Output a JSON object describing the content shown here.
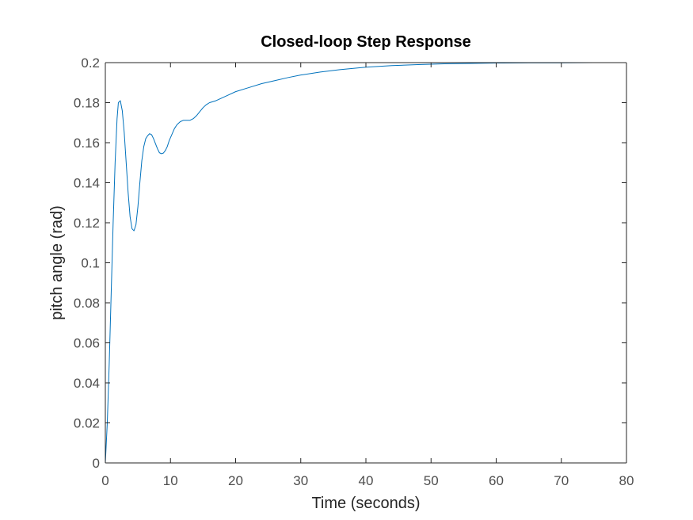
{
  "chart_data": {
    "type": "line",
    "title": "Closed-loop Step Response",
    "xlabel": "Time (seconds)",
    "ylabel": "pitch angle (rad)",
    "xlim": [
      0,
      80
    ],
    "ylim": [
      0,
      0.2
    ],
    "xticks": [
      0,
      10,
      20,
      30,
      40,
      50,
      60,
      70,
      80
    ],
    "yticks": [
      0,
      0.02,
      0.04,
      0.06,
      0.08,
      0.1,
      0.12,
      0.14,
      0.16,
      0.18,
      0.2
    ],
    "xtick_labels": [
      "0",
      "10",
      "20",
      "30",
      "40",
      "50",
      "60",
      "70",
      "80"
    ],
    "ytick_labels": [
      "0",
      "0.02",
      "0.04",
      "0.06",
      "0.08",
      "0.1",
      "0.12",
      "0.14",
      "0.16",
      "0.18",
      "0.2"
    ],
    "grid": false,
    "reference_line": {
      "y": 0.2,
      "style": "dotted"
    },
    "series": [
      {
        "color": "#0072BD",
        "x": [
          0,
          0.3,
          0.6,
          0.9,
          1.2,
          1.5,
          1.8,
          2.0,
          2.3,
          2.6,
          2.9,
          3.2,
          3.5,
          3.8,
          4.1,
          4.4,
          4.7,
          5.0,
          5.3,
          5.6,
          5.9,
          6.2,
          6.5,
          6.8,
          7.1,
          7.4,
          7.7,
          8.0,
          8.3,
          8.6,
          8.9,
          9.2,
          9.5,
          9.8,
          10.2,
          10.6,
          11.0,
          11.5,
          12.0,
          12.5,
          13.0,
          13.5,
          14.0,
          14.5,
          15.0,
          15.5,
          16.0,
          17.0,
          18.0,
          19.0,
          20.0,
          22.0,
          24.0,
          26.0,
          28.0,
          30.0,
          33.0,
          36.0,
          40.0,
          44.0,
          48.0,
          52.0,
          56.0,
          60.0,
          65.0,
          70.0,
          75.0,
          80.0
        ],
        "y": [
          0,
          0.02,
          0.05,
          0.085,
          0.12,
          0.15,
          0.172,
          0.18,
          0.181,
          0.176,
          0.165,
          0.15,
          0.135,
          0.123,
          0.117,
          0.116,
          0.119,
          0.128,
          0.14,
          0.151,
          0.158,
          0.162,
          0.1635,
          0.1645,
          0.164,
          0.162,
          0.1595,
          0.157,
          0.155,
          0.1545,
          0.1548,
          0.156,
          0.158,
          0.161,
          0.164,
          0.167,
          0.169,
          0.1705,
          0.1712,
          0.1712,
          0.1712,
          0.172,
          0.1735,
          0.1755,
          0.1775,
          0.179,
          0.18,
          0.181,
          0.1825,
          0.184,
          0.1855,
          0.1875,
          0.1895,
          0.191,
          0.1925,
          0.1938,
          0.1953,
          0.1965,
          0.1977,
          0.1985,
          0.199,
          0.1994,
          0.1996,
          0.1998,
          0.1999,
          0.1999,
          0.2,
          0.2
        ]
      }
    ]
  }
}
